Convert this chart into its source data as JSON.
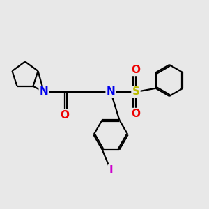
{
  "background_color": "#e8e8e8",
  "bond_color": "#000000",
  "N_color": "#0000ee",
  "O_color": "#ee0000",
  "S_color": "#bbbb00",
  "I_color": "#cc00cc",
  "font_size_atoms": 11,
  "line_width": 1.6,
  "figsize": [
    3.0,
    3.0
  ],
  "dpi": 100,
  "xlim": [
    0,
    10
  ],
  "ylim": [
    0,
    10
  ]
}
